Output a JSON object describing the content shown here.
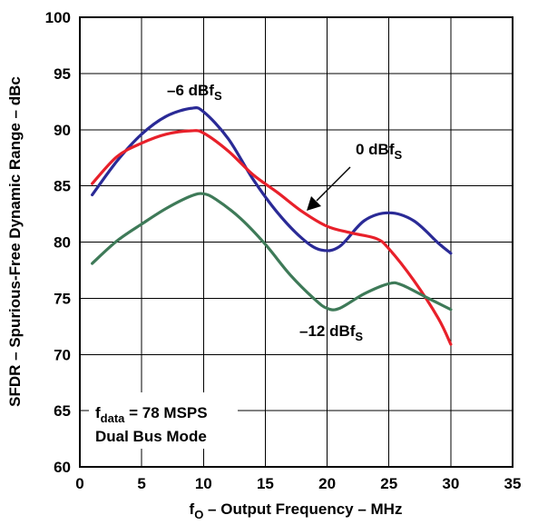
{
  "chart_data": {
    "type": "line",
    "xlabel": {
      "main": "f",
      "sub": "O",
      "rest": " – Output Frequency – MHz"
    },
    "ylabel": "SFDR – Spurious-Free Dynamic Range – dBc",
    "xlim": [
      0,
      35
    ],
    "ylim": [
      60,
      100
    ],
    "xticks": [
      "0",
      "5",
      "10",
      "15",
      "20",
      "25",
      "30",
      "35"
    ],
    "yticks": [
      "60",
      "65",
      "70",
      "75",
      "80",
      "85",
      "90",
      "95",
      "100"
    ],
    "grid": true,
    "series": [
      {
        "name": "–6 dBfS",
        "color": "#2a2a96",
        "points": [
          [
            1,
            84.2
          ],
          [
            3,
            87.2
          ],
          [
            5,
            89.6
          ],
          [
            7,
            91.2
          ],
          [
            9,
            91.9
          ],
          [
            10,
            91.6
          ],
          [
            12,
            89.2
          ],
          [
            14,
            85.6
          ],
          [
            16,
            82.6
          ],
          [
            18,
            80.3
          ],
          [
            19.5,
            79.3
          ],
          [
            21,
            79.6
          ],
          [
            23,
            81.9
          ],
          [
            25,
            82.6
          ],
          [
            27,
            81.9
          ],
          [
            29,
            79.9
          ],
          [
            30,
            79.0
          ]
        ]
      },
      {
        "name": "0 dBfS",
        "color": "#e8202a",
        "points": [
          [
            1,
            85.2
          ],
          [
            3,
            87.6
          ],
          [
            5,
            88.8
          ],
          [
            7,
            89.6
          ],
          [
            9,
            89.9
          ],
          [
            10,
            89.7
          ],
          [
            12,
            88.1
          ],
          [
            14,
            86.0
          ],
          [
            16,
            84.4
          ],
          [
            18,
            82.7
          ],
          [
            20,
            81.4
          ],
          [
            22,
            80.8
          ],
          [
            24,
            80.3
          ],
          [
            25,
            79.4
          ],
          [
            27,
            76.6
          ],
          [
            29,
            73.2
          ],
          [
            30,
            70.9
          ]
        ]
      },
      {
        "name": "–12 dBfS",
        "color": "#3e7a58",
        "points": [
          [
            1,
            78.1
          ],
          [
            3,
            80.1
          ],
          [
            5,
            81.6
          ],
          [
            7,
            83.0
          ],
          [
            9,
            84.1
          ],
          [
            10,
            84.3
          ],
          [
            11,
            83.8
          ],
          [
            13,
            82.1
          ],
          [
            15,
            79.8
          ],
          [
            17,
            77.1
          ],
          [
            19,
            74.9
          ],
          [
            20,
            74.1
          ],
          [
            21,
            74.1
          ],
          [
            23,
            75.4
          ],
          [
            25,
            76.3
          ],
          [
            26,
            76.2
          ],
          [
            28,
            75.1
          ],
          [
            30,
            74.0
          ]
        ]
      }
    ],
    "annotations": {
      "minus6": {
        "main": "–6 dBf",
        "sub": "S"
      },
      "zero": {
        "main": "0 dBf",
        "sub": "S"
      },
      "minus12": {
        "main": "–12 dBf",
        "sub": "S"
      },
      "fdata": {
        "main": "f",
        "sub": "data",
        "rest": " = 78 MSPS"
      },
      "mode": "Dual Bus Mode"
    }
  }
}
